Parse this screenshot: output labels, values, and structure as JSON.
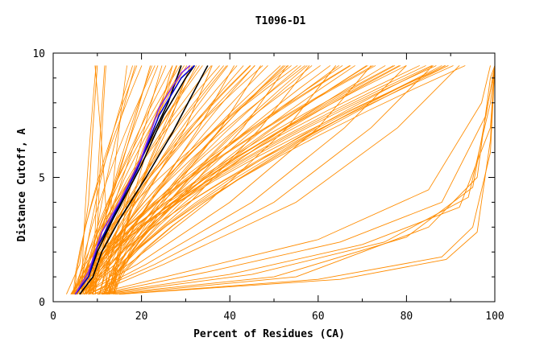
{
  "chart_data": {
    "type": "line",
    "title": "T1096-D1",
    "xlabel": "Percent of Residues (CA)",
    "ylabel": "Distance Cutoff, A",
    "xlim": [
      0,
      100
    ],
    "ylim": [
      0,
      10
    ],
    "x_ticks": [
      0,
      20,
      40,
      60,
      80,
      100
    ],
    "y_ticks": [
      0,
      5,
      10
    ],
    "grid": false,
    "legend": "none",
    "colors": {
      "models": "#ff8c00",
      "highlight_dark": "#000000",
      "highlight_blue": "#0000cc",
      "highlight_purple": "#8a2be2"
    },
    "background_band_ends": [
      12,
      18,
      22,
      26,
      30,
      34,
      38,
      42,
      46,
      50,
      55,
      60,
      65,
      70,
      75,
      80,
      85,
      89,
      92
    ],
    "series": [
      {
        "color": "#ff8c00",
        "points": [
          [
            3,
            0.3
          ],
          [
            6,
            1.5
          ],
          [
            8,
            4
          ],
          [
            9,
            7
          ],
          [
            10,
            9.5
          ]
        ]
      },
      {
        "color": "#ff8c00",
        "points": [
          [
            4,
            0.3
          ],
          [
            8,
            1.5
          ],
          [
            13,
            4
          ],
          [
            18,
            7
          ],
          [
            22,
            9.5
          ]
        ]
      },
      {
        "color": "#ff8c00",
        "points": [
          [
            4,
            0.3
          ],
          [
            9,
            1.5
          ],
          [
            16,
            4
          ],
          [
            23,
            7
          ],
          [
            27,
            9.5
          ]
        ]
      },
      {
        "color": "#ff8c00",
        "points": [
          [
            5,
            0.3
          ],
          [
            10,
            1.5
          ],
          [
            18,
            4
          ],
          [
            26,
            7
          ],
          [
            31,
            9.5
          ]
        ]
      },
      {
        "color": "#ff8c00",
        "points": [
          [
            5,
            0.3
          ],
          [
            11,
            1.5
          ],
          [
            20,
            4
          ],
          [
            30,
            7
          ],
          [
            36,
            9.5
          ]
        ]
      },
      {
        "color": "#ff8c00",
        "points": [
          [
            5,
            0.3
          ],
          [
            12,
            1.5
          ],
          [
            22,
            4
          ],
          [
            33,
            7
          ],
          [
            41,
            9.5
          ]
        ]
      },
      {
        "color": "#ff8c00",
        "points": [
          [
            6,
            0.3
          ],
          [
            13,
            1.5
          ],
          [
            25,
            4
          ],
          [
            38,
            7
          ],
          [
            47,
            9.5
          ]
        ]
      },
      {
        "color": "#ff8c00",
        "points": [
          [
            6,
            0.3
          ],
          [
            14,
            1.5
          ],
          [
            28,
            4
          ],
          [
            43,
            7
          ],
          [
            53,
            9.5
          ]
        ]
      },
      {
        "color": "#ff8c00",
        "points": [
          [
            6,
            0.3
          ],
          [
            15,
            1.5
          ],
          [
            31,
            4
          ],
          [
            47,
            7
          ],
          [
            58,
            9.5
          ]
        ]
      },
      {
        "color": "#ff8c00",
        "points": [
          [
            7,
            0.3
          ],
          [
            17,
            1.5
          ],
          [
            35,
            4
          ],
          [
            53,
            7
          ],
          [
            64,
            9.5
          ]
        ]
      },
      {
        "color": "#ff8c00",
        "points": [
          [
            7,
            0.3
          ],
          [
            19,
            1.5
          ],
          [
            40,
            4
          ],
          [
            60,
            7
          ],
          [
            72,
            9.5
          ]
        ]
      },
      {
        "color": "#ff8c00",
        "points": [
          [
            8,
            0.3
          ],
          [
            21,
            1.5
          ],
          [
            45,
            4
          ],
          [
            66,
            7
          ],
          [
            80,
            9.5
          ]
        ]
      },
      {
        "color": "#ff8c00",
        "points": [
          [
            8,
            0.3
          ],
          [
            23,
            1.5
          ],
          [
            50,
            4
          ],
          [
            72,
            7
          ],
          [
            86,
            9.5
          ]
        ]
      },
      {
        "color": "#ff8c00",
        "points": [
          [
            9,
            0.3
          ],
          [
            25,
            1.5
          ],
          [
            55,
            4
          ],
          [
            78,
            7
          ],
          [
            92,
            9.5
          ]
        ]
      },
      {
        "color": "#ff8c00",
        "points": [
          [
            9,
            0.3
          ],
          [
            30,
            1.2
          ],
          [
            60,
            2.5
          ],
          [
            85,
            4.5
          ],
          [
            97,
            8
          ],
          [
            99,
            9.5
          ]
        ]
      },
      {
        "color": "#ff8c00",
        "points": [
          [
            10,
            0.3
          ],
          [
            35,
            1.2
          ],
          [
            65,
            2.4
          ],
          [
            88,
            4
          ],
          [
            98,
            7.5
          ],
          [
            100,
            9.5
          ]
        ]
      },
      {
        "color": "#ff8c00",
        "points": [
          [
            10,
            0.3
          ],
          [
            40,
            1.1
          ],
          [
            70,
            2.3
          ],
          [
            92,
            3.8
          ],
          [
            99,
            7
          ],
          [
            100,
            9.5
          ]
        ]
      },
      {
        "color": "#ff8c00",
        "points": [
          [
            11,
            0.3
          ],
          [
            45,
            1.1
          ],
          [
            75,
            2.4
          ],
          [
            94,
            4.2
          ],
          [
            99,
            8
          ],
          [
            100,
            9.5
          ]
        ]
      },
      {
        "color": "#ff8c00",
        "points": [
          [
            12,
            0.3
          ],
          [
            50,
            1.0
          ],
          [
            80,
            2.6
          ],
          [
            95,
            4.6
          ],
          [
            99,
            8.5
          ],
          [
            100,
            9.5
          ]
        ]
      },
      {
        "color": "#ff8c00",
        "points": [
          [
            14,
            0.3
          ],
          [
            55,
            1.0
          ],
          [
            85,
            3.0
          ],
          [
            96,
            5.0
          ],
          [
            99,
            9.0
          ],
          [
            100,
            9.5
          ]
        ]
      },
      {
        "color": "#ff8c00",
        "points": [
          [
            15,
            0.3
          ],
          [
            60,
            0.9
          ],
          [
            88,
            1.8
          ],
          [
            95,
            3.0
          ],
          [
            99,
            6.0
          ],
          [
            100,
            9.5
          ]
        ]
      },
      {
        "color": "#ff8c00",
        "points": [
          [
            15,
            0.3
          ],
          [
            65,
            0.9
          ],
          [
            89,
            1.7
          ],
          [
            96,
            2.8
          ],
          [
            99,
            6.5
          ],
          [
            100,
            9.5
          ]
        ]
      },
      {
        "color": "#000000",
        "points": [
          [
            5,
            0.3
          ],
          [
            8,
            1.0
          ],
          [
            10,
            2.0
          ],
          [
            14,
            3.5
          ],
          [
            18,
            5.0
          ],
          [
            22,
            6.5
          ],
          [
            26,
            8.0
          ],
          [
            29,
            9.5
          ]
        ]
      },
      {
        "color": "#000000",
        "points": [
          [
            5,
            0.3
          ],
          [
            8,
            1.0
          ],
          [
            10,
            2.2
          ],
          [
            15,
            3.8
          ],
          [
            20,
            5.5
          ],
          [
            25,
            7.5
          ],
          [
            30,
            9.0
          ],
          [
            32,
            9.5
          ]
        ]
      },
      {
        "color": "#000000",
        "points": [
          [
            6,
            0.3
          ],
          [
            9,
            1.0
          ],
          [
            11,
            2.0
          ],
          [
            15,
            3.3
          ],
          [
            21,
            5.0
          ],
          [
            27,
            6.8
          ],
          [
            32,
            8.5
          ],
          [
            35,
            9.5
          ]
        ]
      },
      {
        "color": "#0000cc",
        "points": [
          [
            5,
            0.3
          ],
          [
            8,
            1.0
          ],
          [
            10,
            2.2
          ],
          [
            14,
            3.6
          ],
          [
            19,
            5.3
          ],
          [
            24,
            7.5
          ],
          [
            29,
            9.0
          ],
          [
            32,
            9.5
          ]
        ]
      },
      {
        "color": "#8a2be2",
        "points": [
          [
            5,
            0.3
          ],
          [
            8,
            1.2
          ],
          [
            11,
            2.8
          ],
          [
            15,
            4.0
          ],
          [
            20,
            5.8
          ],
          [
            24,
            7.8
          ],
          [
            29,
            9.2
          ],
          [
            31,
            9.5
          ]
        ]
      }
    ]
  }
}
